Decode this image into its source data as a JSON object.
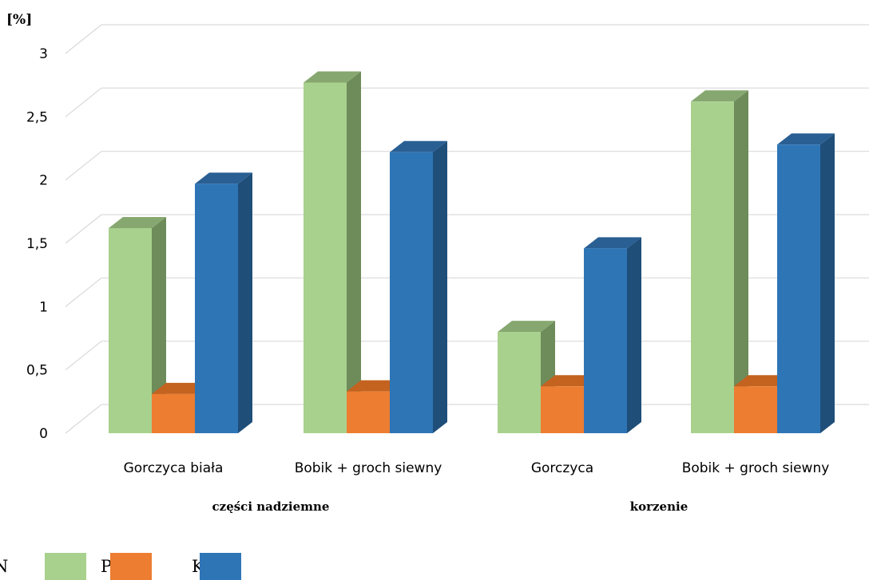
{
  "chart_data": {
    "type": "bar",
    "y_unit_label": "[%]",
    "ylim": [
      0,
      3
    ],
    "yticks": [
      "0",
      "0,5",
      "1",
      "1,5",
      "2",
      "2,5",
      "3"
    ],
    "categories": [
      "Gorczyca biała",
      "Bobik + groch siewny",
      "Gorczyca",
      "Bobik + groch siewny"
    ],
    "groups": [
      {
        "label": "części nadziemne",
        "categories": [
          0,
          1
        ]
      },
      {
        "label": "korzenie",
        "categories": [
          2,
          3
        ]
      }
    ],
    "series": [
      {
        "name": "N",
        "color": "#A9D18E",
        "side_color": "#6E8B5A",
        "top_color": "#86A870",
        "values": [
          1.62,
          2.77,
          0.8,
          2.62
        ]
      },
      {
        "name": "P",
        "color": "#ED7D31",
        "side_color": "#A9561D",
        "top_color": "#C4621F",
        "values": [
          0.31,
          0.33,
          0.37,
          0.37
        ]
      },
      {
        "name": "K",
        "color": "#2E75B6",
        "side_color": "#1F4E79",
        "top_color": "#2A5F93",
        "values": [
          1.97,
          2.22,
          1.46,
          2.28
        ]
      }
    ],
    "grid": true,
    "legend_position": "bottom-left",
    "three_d": true
  }
}
